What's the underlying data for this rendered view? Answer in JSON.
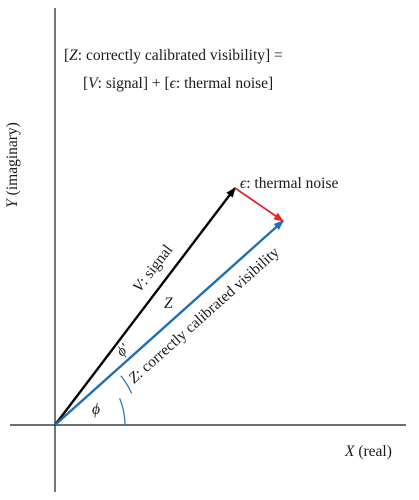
{
  "equation": {
    "line1": {
      "open": "[",
      "var": "Z",
      "text": ": correctly calibrated visibility] ="
    },
    "line2": {
      "open": "[",
      "var_v": "V",
      "text_v": ": signal] + [",
      "var_e": "ϵ",
      "text_e": ": thermal noise]"
    }
  },
  "axes": {
    "x_var": "X",
    "x_unit": " (real)",
    "y_var": "Y",
    "y_unit": " (imaginary)"
  },
  "vectors": {
    "signal": {
      "var": "V",
      "text": ": signal",
      "color": "#000000"
    },
    "visibility": {
      "var": "Z",
      "text": ": correctly calibrated visibility",
      "mid_label": "Z",
      "color": "#1f6fb2"
    },
    "noise": {
      "var": "ϵ",
      "text": ": thermal noise",
      "color": "#e3262a"
    }
  },
  "angles": {
    "phi": "ϕ",
    "phi_prime": "ϕ′",
    "color": "#1f6fb2"
  }
}
